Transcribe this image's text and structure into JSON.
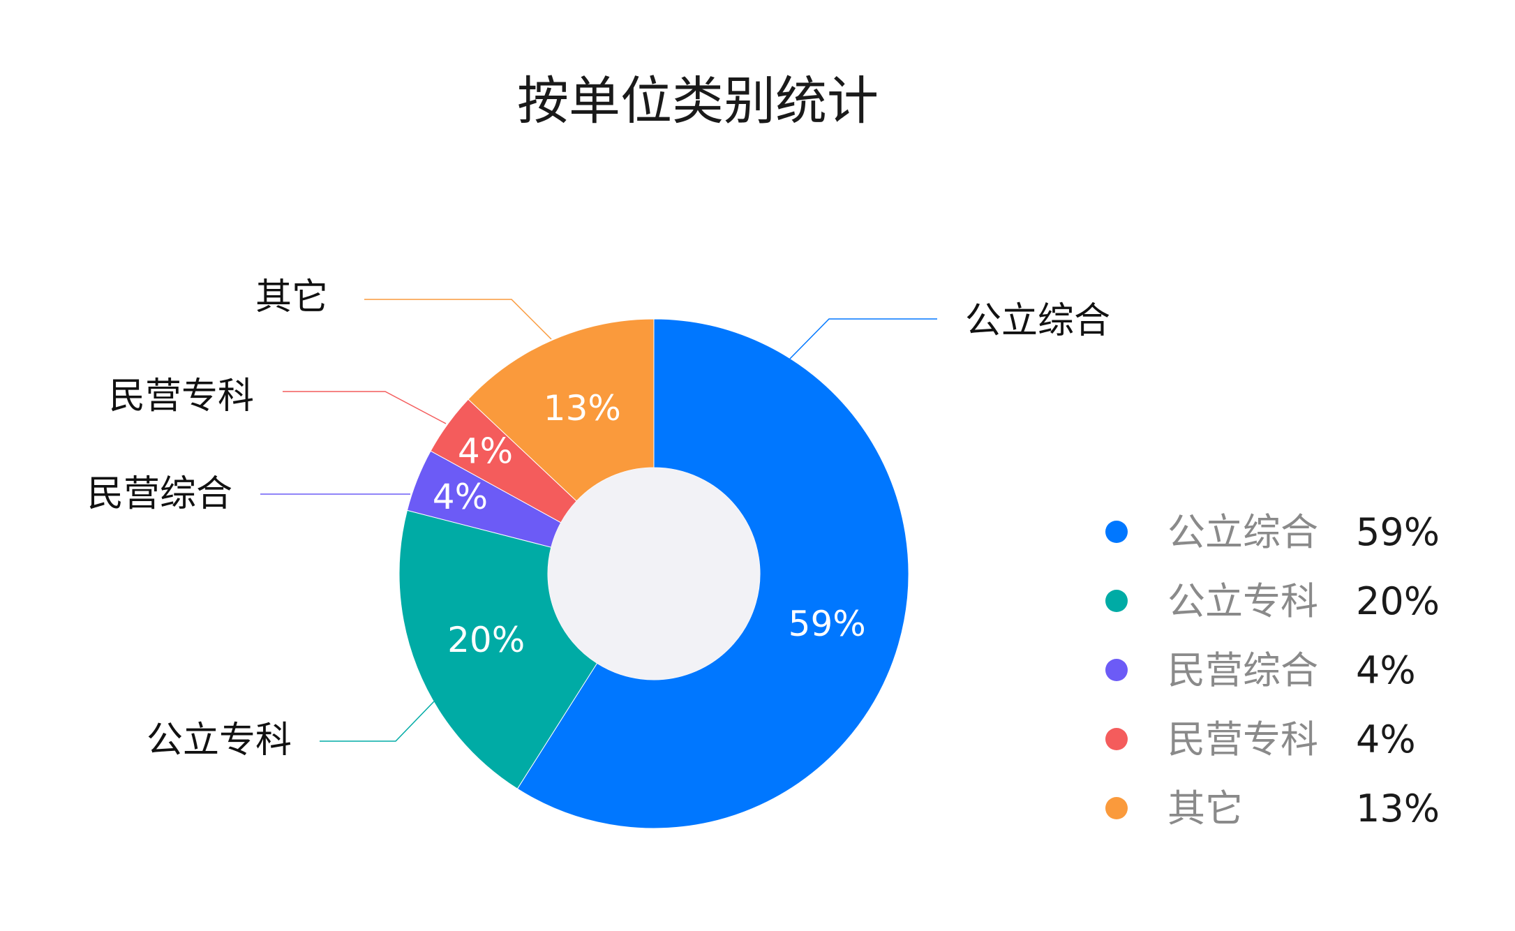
{
  "chart_data": {
    "type": "pie",
    "variant": "donut",
    "title": "按单位类别统计",
    "categories": [
      "公立综合",
      "公立专科",
      "民营综合",
      "民营专科",
      "其它"
    ],
    "values": [
      59,
      20,
      4,
      4,
      13
    ],
    "value_labels": [
      "59%",
      "20%",
      "4%",
      "4%",
      "13%"
    ],
    "colors": [
      "#0077ff",
      "#00aba5",
      "#6c5bf6",
      "#f45c5c",
      "#fa9a3c"
    ],
    "center_color": "#f2f2f6",
    "legend": {
      "position": "right",
      "entries": [
        {
          "name": "公立综合",
          "value": "59%"
        },
        {
          "name": "公立专科",
          "value": "20%"
        },
        {
          "name": "民营综合",
          "value": "4%"
        },
        {
          "name": "民营专科",
          "value": "4%"
        },
        {
          "name": "其它",
          "value": "13%"
        }
      ]
    }
  }
}
